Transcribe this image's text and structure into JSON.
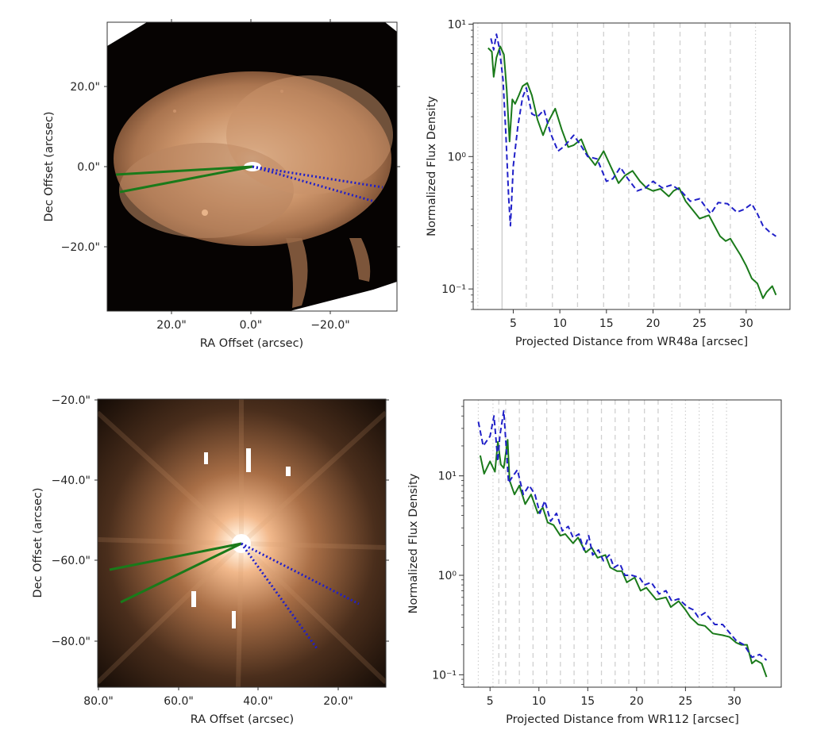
{
  "figure": {
    "panels": [
      {
        "id": "wr48a-image",
        "type": "image",
        "xlabel": "RA Offset (arcsec)",
        "ylabel": "Dec Offset (arcsec)",
        "xticks": [
          "20.0\"",
          "0.0\"",
          "−20.0\""
        ],
        "yticks": [
          "20.0\"",
          "0.0\"",
          "−20.0\""
        ],
        "overlay": {
          "solid_color": "#1a7a1a",
          "dotted_color": "#2020c8"
        }
      },
      {
        "id": "wr112-image",
        "type": "image",
        "xlabel": "RA Offset (arcsec)",
        "ylabel": "Dec Offset (arcsec)",
        "xticks": [
          "80.0\"",
          "60.0\"",
          "40.0\"",
          "20.0\""
        ],
        "yticks": [
          "−20.0\"",
          "−40.0\"",
          "−60.0\"",
          "−80.0\""
        ],
        "overlay": {
          "solid_color": "#1a7a1a",
          "dotted_color": "#2020c8"
        }
      }
    ]
  },
  "chart_data": [
    {
      "type": "line",
      "title": "",
      "xlabel": "Projected Distance from WR48a [arcsec]",
      "ylabel": "Normalized Flux Density",
      "yscale": "log",
      "xlim": [
        0.7,
        34.7
      ],
      "ylim": [
        0.07,
        10.2
      ],
      "xticks": [
        5,
        10,
        15,
        20,
        25,
        30
      ],
      "xtick_labels": [
        "5",
        "10",
        "15",
        "20",
        "25",
        "30"
      ],
      "yticks": [
        0.1,
        1,
        10
      ],
      "ytick_labels": [
        "10⁻¹",
        "10⁰",
        "10¹"
      ],
      "vlines_solid": [
        3.8
      ],
      "vlines_dashed": [
        6.4,
        9.2,
        11.9,
        14.7,
        17.4,
        20.1,
        22.9,
        25.6,
        28.3
      ],
      "vlines_dotted": [
        1.2,
        31.0
      ],
      "series": [
        {
          "name": "solid-green",
          "color": "#1a7a1a",
          "style": "solid",
          "x": [
            2.3,
            2.7,
            2.9,
            3.2,
            3.6,
            4.0,
            4.3,
            4.6,
            4.9,
            5.2,
            5.6,
            6.0,
            6.5,
            7.0,
            7.6,
            8.2,
            8.7,
            9.5,
            10.2,
            10.9,
            11.5,
            12.3,
            13.0,
            13.8,
            14.7,
            15.5,
            16.3,
            17.0,
            17.8,
            18.6,
            19.3,
            20.0,
            20.8,
            21.7,
            22.2,
            22.8,
            23.5,
            24.2,
            25.0,
            25.5,
            26.0,
            26.6,
            27.2,
            27.8,
            28.3,
            28.8,
            29.4,
            30.0,
            30.6,
            31.2,
            31.8,
            32.2,
            32.8,
            33.2
          ],
          "y": [
            6.6,
            6.2,
            4.0,
            5.6,
            6.8,
            5.9,
            3.2,
            1.3,
            2.7,
            2.5,
            2.9,
            3.4,
            3.6,
            2.9,
            1.9,
            1.45,
            1.8,
            2.3,
            1.6,
            1.18,
            1.22,
            1.35,
            1.02,
            0.86,
            1.1,
            0.83,
            0.63,
            0.72,
            0.78,
            0.65,
            0.58,
            0.55,
            0.57,
            0.5,
            0.55,
            0.58,
            0.46,
            0.4,
            0.34,
            0.35,
            0.36,
            0.3,
            0.25,
            0.23,
            0.24,
            0.21,
            0.18,
            0.15,
            0.12,
            0.11,
            0.085,
            0.095,
            0.105,
            0.09
          ]
        },
        {
          "name": "dashed-blue",
          "color": "#2020c8",
          "style": "dashed",
          "x": [
            2.6,
            2.9,
            3.2,
            3.5,
            3.9,
            4.2,
            4.5,
            4.7,
            5.0,
            5.5,
            6.0,
            6.4,
            7.0,
            7.6,
            8.3,
            9.0,
            9.8,
            10.5,
            11.5,
            12.3,
            13.0,
            14.0,
            15.0,
            15.7,
            16.5,
            17.3,
            18.3,
            19.2,
            20.0,
            21.0,
            22.0,
            23.0,
            24.0,
            25.0,
            25.5,
            26.2,
            27.0,
            28.0,
            29.0,
            29.8,
            30.6,
            31.2,
            31.8,
            32.5,
            33.2
          ],
          "y": [
            7.8,
            6.4,
            8.4,
            6.6,
            3.8,
            1.5,
            0.5,
            0.3,
            0.85,
            1.7,
            2.8,
            3.3,
            2.1,
            2.0,
            2.25,
            1.5,
            1.1,
            1.2,
            1.45,
            1.2,
            1.0,
            0.96,
            0.65,
            0.68,
            0.83,
            0.68,
            0.55,
            0.58,
            0.65,
            0.58,
            0.61,
            0.55,
            0.46,
            0.48,
            0.43,
            0.37,
            0.45,
            0.44,
            0.38,
            0.4,
            0.44,
            0.37,
            0.3,
            0.27,
            0.25
          ]
        }
      ]
    },
    {
      "type": "line",
      "title": "",
      "xlabel": "Projected Distance from WR112 [arcsec]",
      "ylabel": "Normalized Flux Density",
      "yscale": "log",
      "xlim": [
        2.3,
        34.8
      ],
      "ylim": [
        0.075,
        58
      ],
      "xticks": [
        5,
        10,
        15,
        20,
        25,
        30
      ],
      "xtick_labels": [
        "5",
        "10",
        "15",
        "20",
        "25",
        "30"
      ],
      "yticks": [
        0.1,
        1,
        10
      ],
      "ytick_labels": [
        "10⁻¹",
        "10⁰",
        "10¹"
      ],
      "vlines_dashed": [
        5.9,
        6.6,
        8.0,
        9.4,
        10.8,
        12.2,
        13.6,
        15.0,
        16.4,
        17.8,
        19.2,
        20.8,
        22.2
      ],
      "vlines_dotted": [
        3.8,
        5.3,
        23.6,
        25.0,
        26.4,
        27.8,
        29.2
      ],
      "series": [
        {
          "name": "solid-green",
          "color": "#1a7a1a",
          "style": "solid",
          "x": [
            4.0,
            4.4,
            5.0,
            5.5,
            5.8,
            6.1,
            6.4,
            6.8,
            7.0,
            7.5,
            8.0,
            8.6,
            9.2,
            9.9,
            10.4,
            10.9,
            11.5,
            12.2,
            12.7,
            13.5,
            14.0,
            14.8,
            15.4,
            16.0,
            16.8,
            17.3,
            18.0,
            18.5,
            19.0,
            19.8,
            20.4,
            21.0,
            22.0,
            23.0,
            23.5,
            24.3,
            25.0,
            25.5,
            26.3,
            27.0,
            27.8,
            28.8,
            29.5,
            30.2,
            30.7,
            31.3,
            31.8,
            32.2,
            32.8,
            33.3
          ],
          "y": [
            16,
            10.5,
            14,
            11,
            22,
            13,
            12,
            23,
            9,
            6.5,
            8,
            5.2,
            6.5,
            4.2,
            4.8,
            3.4,
            3.2,
            2.5,
            2.6,
            2.1,
            2.4,
            1.7,
            1.9,
            1.5,
            1.6,
            1.2,
            1.1,
            1.1,
            0.85,
            0.95,
            0.7,
            0.75,
            0.57,
            0.6,
            0.48,
            0.55,
            0.45,
            0.38,
            0.32,
            0.31,
            0.26,
            0.25,
            0.24,
            0.21,
            0.2,
            0.2,
            0.13,
            0.14,
            0.13,
            0.095
          ]
        },
        {
          "name": "dashed-blue",
          "color": "#2020c8",
          "style": "dashed",
          "x": [
            3.8,
            4.3,
            5.0,
            5.4,
            5.8,
            6.0,
            6.4,
            6.9,
            7.2,
            7.8,
            8.4,
            9.0,
            9.6,
            10.1,
            10.6,
            11.2,
            11.8,
            12.4,
            13.0,
            13.5,
            14.1,
            14.6,
            15.1,
            15.5,
            16.1,
            16.6,
            17.2,
            17.7,
            18.3,
            18.8,
            19.5,
            20.3,
            20.8,
            21.5,
            22.3,
            23.0,
            23.6,
            24.3,
            25.2,
            25.8,
            26.3,
            27.0,
            28.0,
            28.8,
            29.3,
            30.2,
            31.0,
            31.8,
            32.6,
            33.3
          ],
          "y": [
            35,
            20,
            25,
            40,
            14,
            25,
            45,
            8.5,
            9.5,
            11.5,
            6.5,
            8,
            6.5,
            4.2,
            5.6,
            3.5,
            4.2,
            2.8,
            3.1,
            2.4,
            2.6,
            1.8,
            2.5,
            1.6,
            1.8,
            1.4,
            1.6,
            1.2,
            1.3,
            1.0,
            1.0,
            0.95,
            0.8,
            0.85,
            0.65,
            0.7,
            0.55,
            0.58,
            0.48,
            0.45,
            0.38,
            0.42,
            0.32,
            0.32,
            0.28,
            0.22,
            0.2,
            0.15,
            0.16,
            0.14
          ]
        }
      ]
    }
  ]
}
